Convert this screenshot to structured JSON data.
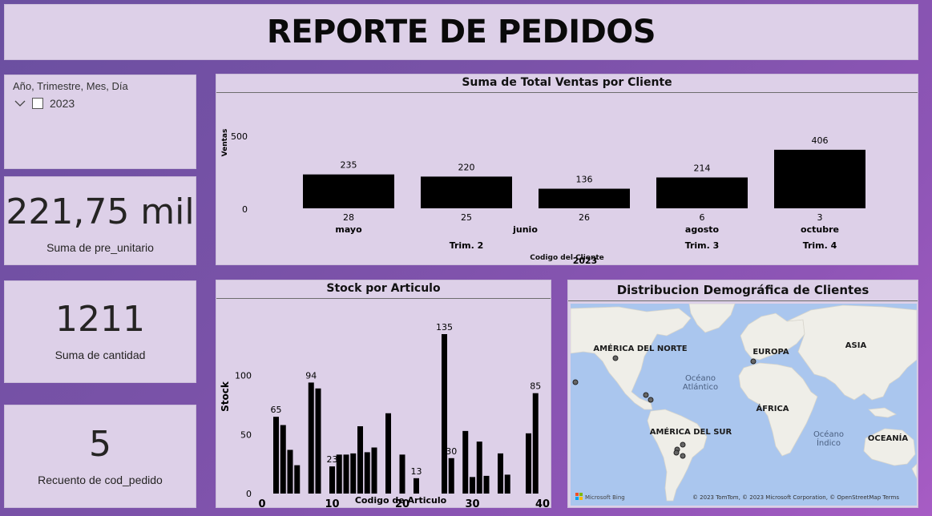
{
  "header": {
    "title": "REPORTE DE PEDIDOS"
  },
  "slicer": {
    "title": "Año, Trimestre, Mes, Día",
    "item_label": "2023",
    "checked": false
  },
  "kpis": {
    "pre_unitario": {
      "value": "221,75 mil",
      "label": "Suma de pre_unitario"
    },
    "cantidad": {
      "value": "1211",
      "label": "Suma de cantidad"
    },
    "cod_pedido": {
      "value": "5",
      "label": "Recuento de cod_pedido"
    }
  },
  "sales_chart": {
    "title": "Suma de Total Ventas por Cliente",
    "ylabel": "Ventas",
    "xlabel": "Codigo del Cliente",
    "y_ticks": [
      "500",
      "0"
    ],
    "year_label": "2023",
    "chart_data": {
      "type": "bar",
      "title": "Suma de Total Ventas por Cliente",
      "xlabel": "Codigo del Cliente",
      "ylabel": "Ventas",
      "ylim": [
        0,
        500
      ],
      "categories": [
        "28",
        "25",
        "26",
        "6",
        "3"
      ],
      "values": [
        235,
        220,
        136,
        214,
        406
      ],
      "months": [
        {
          "label": "mayo",
          "bars": [
            0
          ]
        },
        {
          "label": "junio",
          "bars": [
            1,
            2
          ]
        },
        {
          "label": "agosto",
          "bars": [
            3
          ]
        },
        {
          "label": "octubre",
          "bars": [
            4
          ]
        }
      ],
      "quarters": [
        {
          "label": "Trim. 2",
          "bars": [
            0,
            1,
            2
          ]
        },
        {
          "label": "Trim. 3",
          "bars": [
            3
          ]
        },
        {
          "label": "Trim. 4",
          "bars": [
            4
          ]
        }
      ],
      "bar_color": "#000000"
    }
  },
  "stock_chart": {
    "title": "Stock por Articulo",
    "ylabel": "Stock",
    "xlabel": "Codigo de Articulo",
    "x_ticks": [
      "0",
      "10",
      "20",
      "30",
      "40"
    ],
    "y_ticks": [
      "100",
      "50",
      "0"
    ],
    "chart_data": {
      "type": "bar",
      "title": "Stock por Articulo",
      "xlabel": "Codigo de Articulo",
      "ylabel": "Stock",
      "xlim": [
        0,
        40
      ],
      "ylim": [
        0,
        135
      ],
      "x": [
        2,
        3,
        4,
        5,
        7,
        8,
        10,
        11,
        12,
        13,
        14,
        15,
        16,
        18,
        20,
        22,
        26,
        27,
        29,
        30,
        31,
        32,
        34,
        35,
        38,
        39
      ],
      "values": [
        65,
        58,
        37,
        24,
        94,
        89,
        23,
        33,
        33,
        34,
        57,
        35,
        39,
        68,
        33,
        13,
        135,
        30,
        53,
        14,
        44,
        15,
        34,
        16,
        51,
        85
      ],
      "labeled_bars": [
        {
          "x": 2,
          "label": "65"
        },
        {
          "x": 7,
          "label": "94"
        },
        {
          "x": 10,
          "label": "23"
        },
        {
          "x": 22,
          "label": "13"
        },
        {
          "x": 26,
          "label": "135"
        },
        {
          "x": 27,
          "label": "30"
        },
        {
          "x": 39,
          "label": "85"
        }
      ],
      "bar_color": "#000000"
    }
  },
  "map": {
    "title": "Distribucion Demográfica de Clientes",
    "labels": {
      "north_america": "AMÉRICA DEL NORTE",
      "europe": "EUROPA",
      "asia": "ASIA",
      "atlantic": "Océano\nAtlántico",
      "atlantic_1": "Océano",
      "atlantic_2": "Atlántico",
      "africa": "ÁFRICA",
      "south_america": "AMÉRICA DEL SUR",
      "indian_1": "Océano",
      "indian_2": "Índico",
      "oceania": "OCEANÍA"
    },
    "attribution": "© 2023 TomTom, © 2023 Microsoft Corporation, © OpenStreetMap  Terms",
    "brand": "Microsoft Bing",
    "colors": {
      "ocean": "#aac6ee",
      "land": "#efeee8"
    }
  }
}
